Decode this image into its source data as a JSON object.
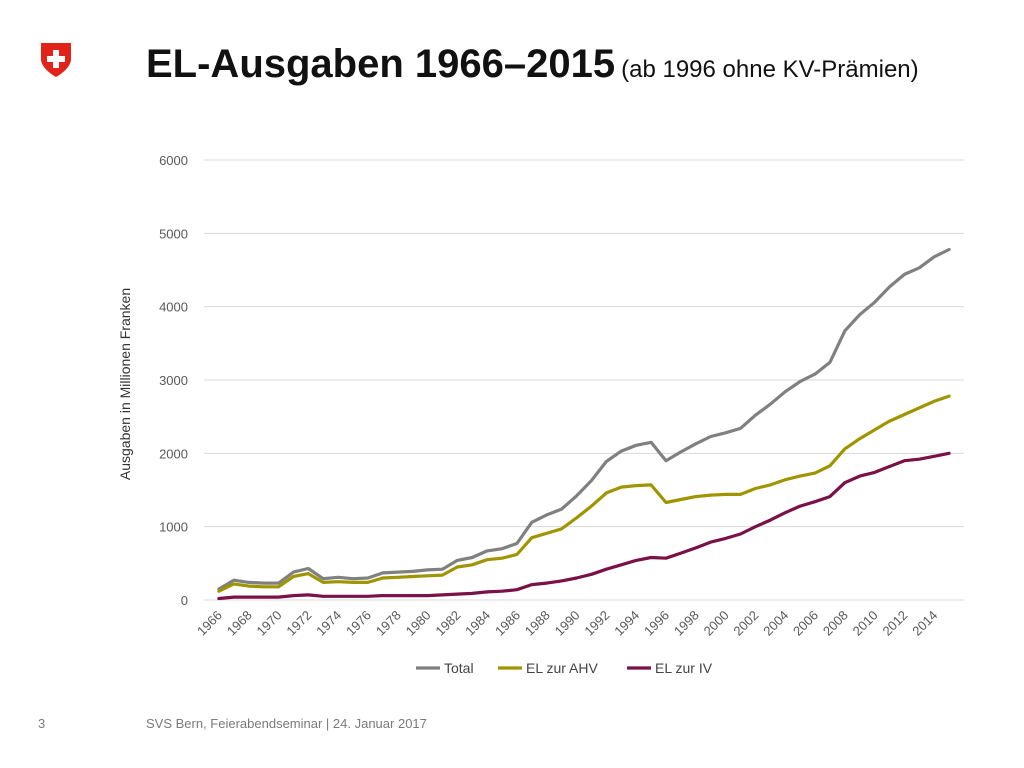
{
  "title": "EL-Ausgaben 1966–2015",
  "subtitle": "(ab 1996 ohne KV-Prämien)",
  "footer": {
    "page": "3",
    "text": "SVS Bern, Feierabendseminar | 24. Januar 2017"
  },
  "colors": {
    "flag_red": "#e2231a",
    "grid": "#d9d9d9",
    "axis_text": "#595959"
  },
  "chart_data": {
    "type": "line",
    "title": "",
    "xlabel": "",
    "ylabel": "Ausgaben in Millionen Franken",
    "ylim": [
      0,
      6000
    ],
    "yticks": [
      0,
      1000,
      2000,
      3000,
      4000,
      5000,
      6000
    ],
    "xticks": [
      "1966",
      "1968",
      "1970",
      "1972",
      "1974",
      "1976",
      "1978",
      "1980",
      "1982",
      "1984",
      "1986",
      "1988",
      "1990",
      "1992",
      "1994",
      "1996",
      "1998",
      "2000",
      "2002",
      "2004",
      "2006",
      "2008",
      "2010",
      "2012",
      "2014"
    ],
    "grid": true,
    "legend_position": "bottom",
    "x": [
      1966,
      1967,
      1968,
      1969,
      1970,
      1971,
      1972,
      1973,
      1974,
      1975,
      1976,
      1977,
      1978,
      1979,
      1980,
      1981,
      1982,
      1983,
      1984,
      1985,
      1986,
      1987,
      1988,
      1989,
      1990,
      1991,
      1992,
      1993,
      1994,
      1995,
      1996,
      1997,
      1998,
      1999,
      2000,
      2001,
      2002,
      2003,
      2004,
      2005,
      2006,
      2007,
      2008,
      2009,
      2010,
      2011,
      2012,
      2013,
      2014,
      2015
    ],
    "series": [
      {
        "name": "Total",
        "color": "#808080",
        "values": [
          150,
          270,
          240,
          230,
          230,
          380,
          430,
          290,
          310,
          290,
          300,
          370,
          380,
          390,
          410,
          420,
          540,
          580,
          670,
          700,
          770,
          1060,
          1160,
          1240,
          1420,
          1630,
          1890,
          2030,
          2110,
          2150,
          1900,
          2020,
          2130,
          2230,
          2280,
          2340,
          2520,
          2670,
          2840,
          2980,
          3080,
          3240,
          3670,
          3890,
          4060,
          4270,
          4440,
          4530,
          4680,
          4780
        ]
      },
      {
        "name": "EL zur AHV",
        "color": "#a09500",
        "values": [
          120,
          220,
          190,
          180,
          180,
          320,
          360,
          240,
          250,
          240,
          240,
          300,
          310,
          320,
          330,
          340,
          450,
          480,
          550,
          570,
          620,
          850,
          910,
          970,
          1120,
          1280,
          1460,
          1540,
          1560,
          1570,
          1330,
          1370,
          1410,
          1430,
          1440,
          1440,
          1520,
          1570,
          1640,
          1690,
          1730,
          1830,
          2060,
          2200,
          2320,
          2440,
          2530,
          2620,
          2710,
          2780
        ]
      },
      {
        "name": "EL zur IV",
        "color": "#7a1148",
        "values": [
          20,
          40,
          40,
          40,
          40,
          60,
          70,
          50,
          50,
          50,
          50,
          60,
          60,
          60,
          60,
          70,
          80,
          90,
          110,
          120,
          140,
          210,
          230,
          260,
          300,
          350,
          420,
          480,
          540,
          580,
          570,
          640,
          710,
          790,
          840,
          900,
          1000,
          1090,
          1190,
          1280,
          1340,
          1410,
          1600,
          1690,
          1740,
          1820,
          1900,
          1920,
          1960,
          2000
        ]
      }
    ]
  }
}
